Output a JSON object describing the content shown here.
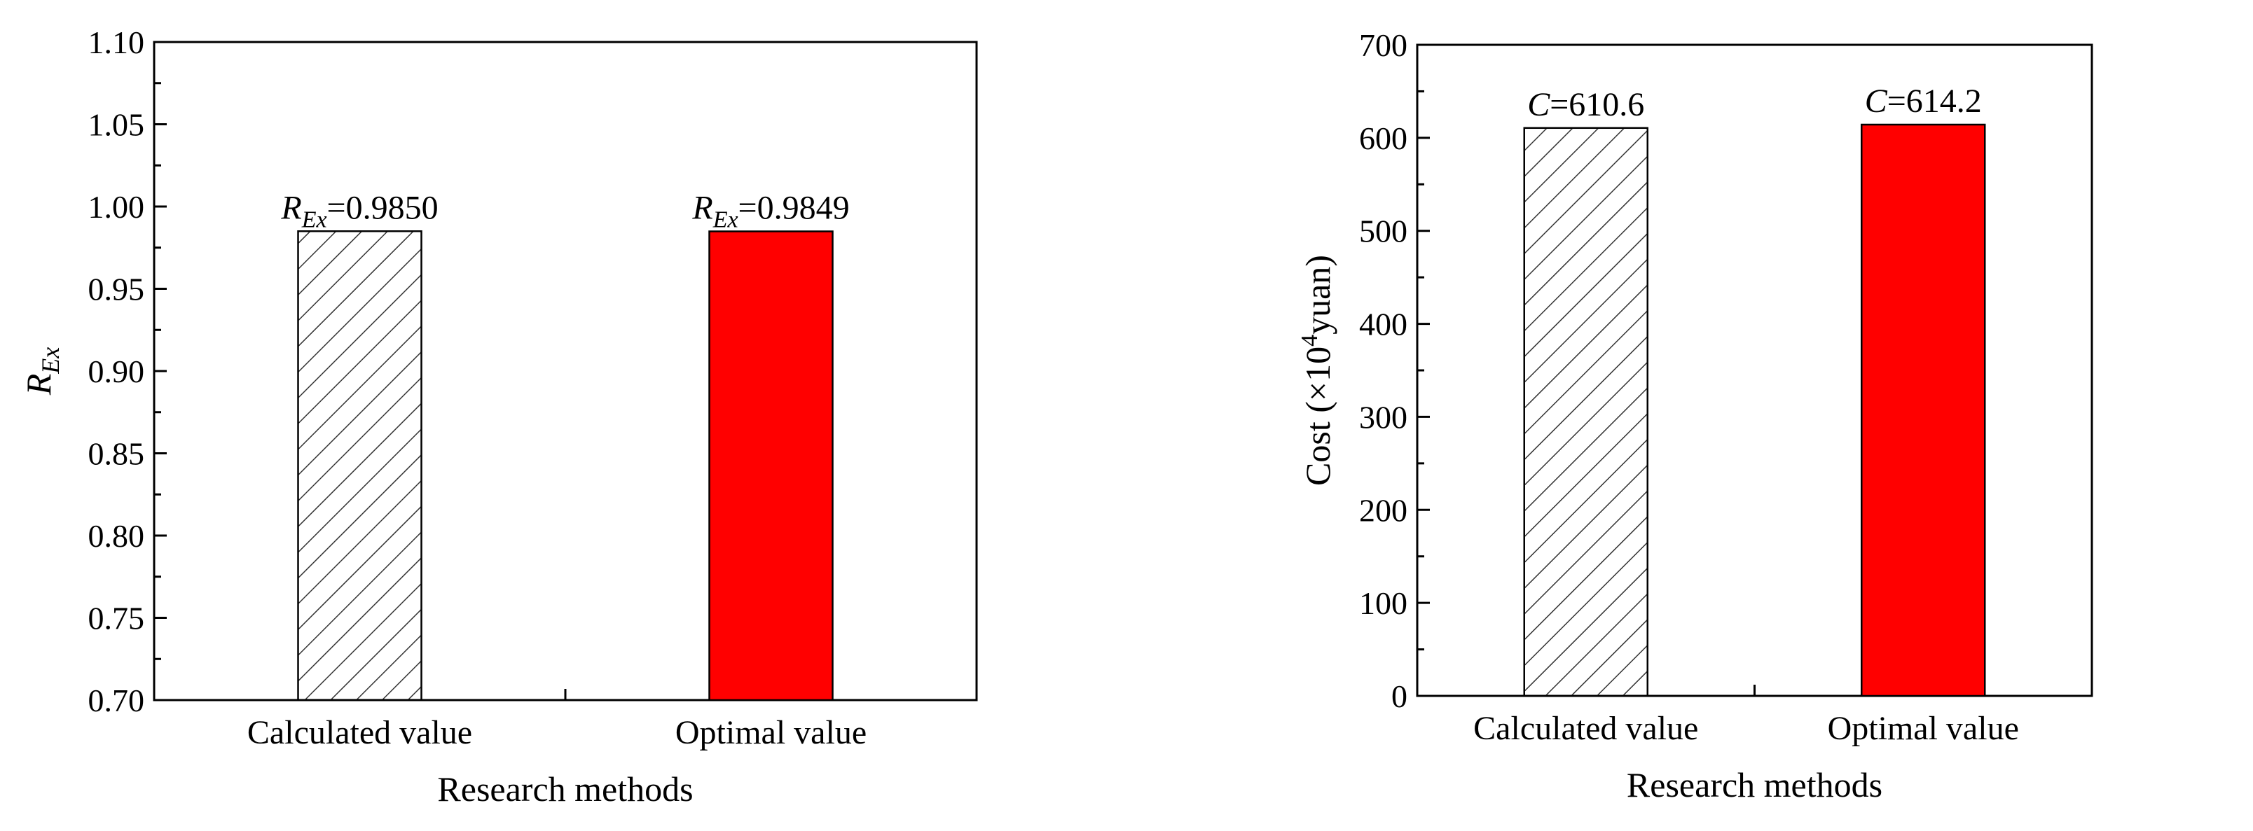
{
  "chart_data": [
    {
      "type": "bar",
      "categories": [
        "Calculated value",
        "Optimal value"
      ],
      "values": [
        0.985,
        0.9849
      ],
      "bar_styles": [
        "hatched",
        "solid"
      ],
      "bar_colors": [
        "#ffffff",
        "#ff0000"
      ],
      "data_labels": [
        {
          "var": "R",
          "sub": "Ex",
          "text": "=0.9850"
        },
        {
          "var": "R",
          "sub": "Ex",
          "text": "=0.9849"
        }
      ],
      "xlabel": "Research methods",
      "ylabel": {
        "var": "R",
        "sub": "Ex"
      },
      "ylim": [
        0.7,
        1.1
      ],
      "yticks": [
        "0.70",
        "0.75",
        "0.80",
        "0.85",
        "0.90",
        "0.95",
        "1.00",
        "1.05",
        "1.10"
      ],
      "grid": false
    },
    {
      "type": "bar",
      "categories": [
        "Calculated value",
        "Optimal value"
      ],
      "values": [
        610.6,
        614.2
      ],
      "bar_styles": [
        "hatched",
        "solid"
      ],
      "bar_colors": [
        "#ffffff",
        "#ff0000"
      ],
      "data_labels": [
        {
          "var": "C",
          "text": "=610.6"
        },
        {
          "var": "C",
          "text": "=614.2"
        }
      ],
      "xlabel": "Research methods",
      "ylabel": {
        "pre": "Cost (×10",
        "sup": "4",
        "post": "yuan)"
      },
      "ylim": [
        0,
        700
      ],
      "yticks": [
        "0",
        "100",
        "200",
        "300",
        "400",
        "500",
        "600",
        "700"
      ],
      "grid": false
    }
  ]
}
